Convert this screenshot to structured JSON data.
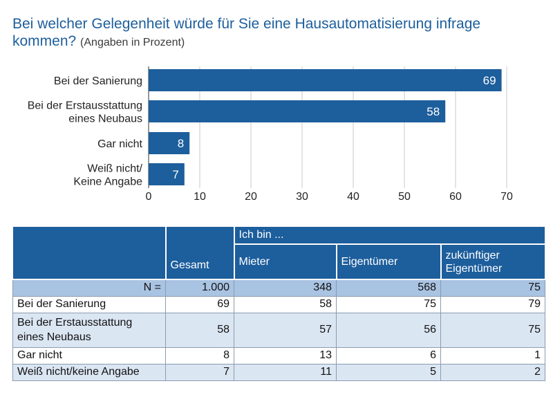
{
  "title": "Bei welcher Gelegenheit würde für Sie eine Hausautomatisierung infrage kommen?",
  "subtitle": "(Angaben in Prozent)",
  "chart_data": {
    "type": "bar",
    "orientation": "horizontal",
    "categories": [
      [
        "Bei der Sanierung"
      ],
      [
        "Bei der Erstausstattung",
        "eines Neubaus"
      ],
      [
        "Gar nicht"
      ],
      [
        "Weiß nicht/",
        "Keine Angabe"
      ]
    ],
    "values": [
      69,
      58,
      8,
      7
    ],
    "xlim": [
      0,
      70
    ],
    "xticks": [
      0,
      10,
      20,
      30,
      40,
      50,
      60,
      70
    ],
    "grid": true,
    "bar_color": "#1d5e9c"
  },
  "table": {
    "group_header": "Ich bin ...",
    "col_gesamt": "Gesamt",
    "col_mieter": "Mieter",
    "col_eigentuemer": "Eigentümer",
    "col_zukuenftig": "zukünftiger Eigentümer",
    "n_label": "N =",
    "n_values": [
      "1.000",
      "348",
      "568",
      "75"
    ],
    "rows": [
      {
        "label": "Bei der Sanierung",
        "values": [
          "69",
          "58",
          "75",
          "79"
        ]
      },
      {
        "label": "Bei der Erstausstattung eines Neubaus",
        "values": [
          "58",
          "57",
          "56",
          "75"
        ]
      },
      {
        "label": "Gar nicht",
        "values": [
          "8",
          "13",
          "6",
          "1"
        ]
      },
      {
        "label": "Weiß nicht/keine Angabe",
        "values": [
          "7",
          "11",
          "5",
          "2"
        ]
      }
    ]
  }
}
